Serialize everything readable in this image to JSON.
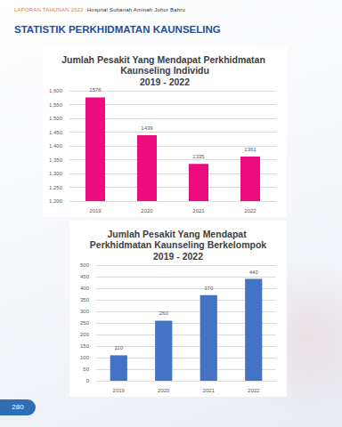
{
  "header": [
    "LAPORAN TAHUNAN 2022",
    "Hospital Sultanah Aminah Johor Bahru"
  ],
  "page_title": "STATISTIK PERKHIDMATAN KAUNSELING",
  "page_number": "280",
  "chart_data": [
    {
      "type": "bar",
      "title": "Jumlah Pesakit Yang Mendapat Perkhidmatan Kaunseling Individu",
      "subtitle": "2019 - 2022",
      "categories": [
        "2019",
        "2020",
        "2021",
        "2022"
      ],
      "values": [
        1576,
        1439,
        1335,
        1361
      ],
      "color": "#ec0c80",
      "ylim": [
        1200,
        1600
      ],
      "yticks": [
        1200,
        1250,
        1300,
        1350,
        1400,
        1450,
        1500,
        1550,
        1600
      ],
      "grid": true,
      "data_labels": true
    },
    {
      "type": "bar",
      "title": "Jumlah Pesakit Yang Mendapat Perkhidmatan Kaunseling Berkelompok",
      "subtitle": "2019 - 2022",
      "categories": [
        "2019",
        "2020",
        "2021",
        "2022"
      ],
      "values": [
        110,
        260,
        370,
        440
      ],
      "color": "#4472c4",
      "ylim": [
        0,
        500
      ],
      "yticks": [
        0,
        50,
        100,
        150,
        200,
        250,
        300,
        350,
        400,
        450,
        500
      ],
      "grid": true,
      "data_labels": true
    }
  ]
}
